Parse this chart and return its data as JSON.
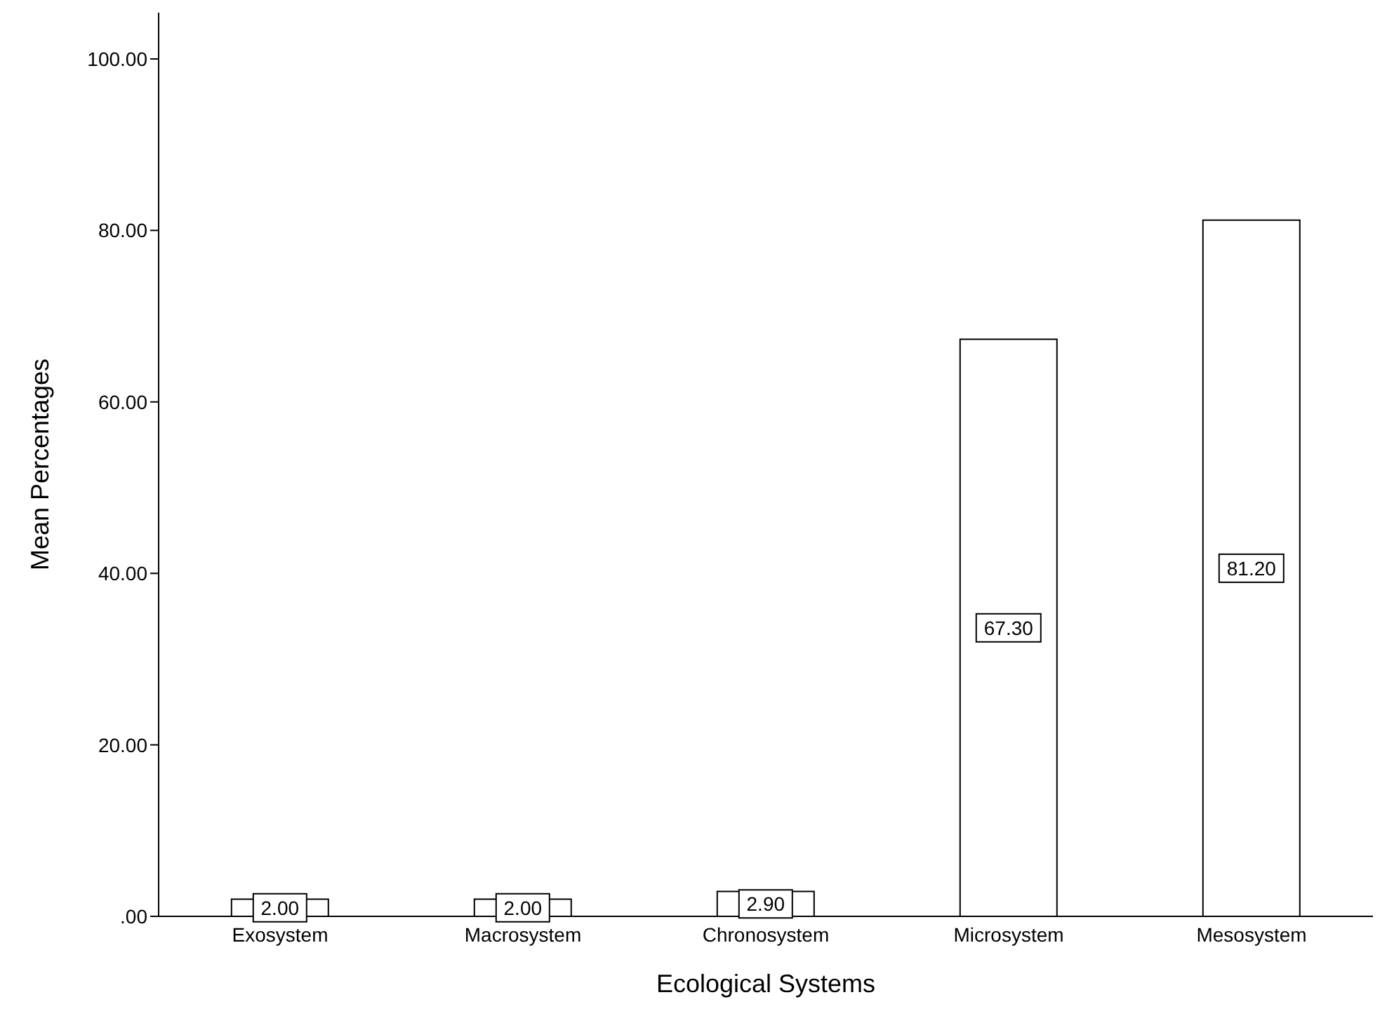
{
  "chart_data": {
    "type": "bar",
    "xlabel": "Ecological Systems",
    "ylabel": "Mean Percentages",
    "categories": [
      "Exosystem",
      "Macrosystem",
      "Chronosystem",
      "Microsystem",
      "Mesosystem"
    ],
    "values": [
      2.0,
      2.0,
      2.9,
      67.3,
      81.2
    ],
    "value_labels": [
      "2.00",
      "2.00",
      "2.90",
      "67.30",
      "81.20"
    ],
    "color": "#ffffff",
    "ylim": [
      0,
      105.4
    ],
    "yticks": [
      {
        "value": 0,
        "label": ".00"
      },
      {
        "value": 20,
        "label": "20.00"
      },
      {
        "value": 40,
        "label": "40.00"
      },
      {
        "value": 60,
        "label": "60.00"
      },
      {
        "value": 80,
        "label": "80.00"
      },
      {
        "value": 100,
        "label": "100.00"
      }
    ],
    "grid": false,
    "legend": false
  }
}
